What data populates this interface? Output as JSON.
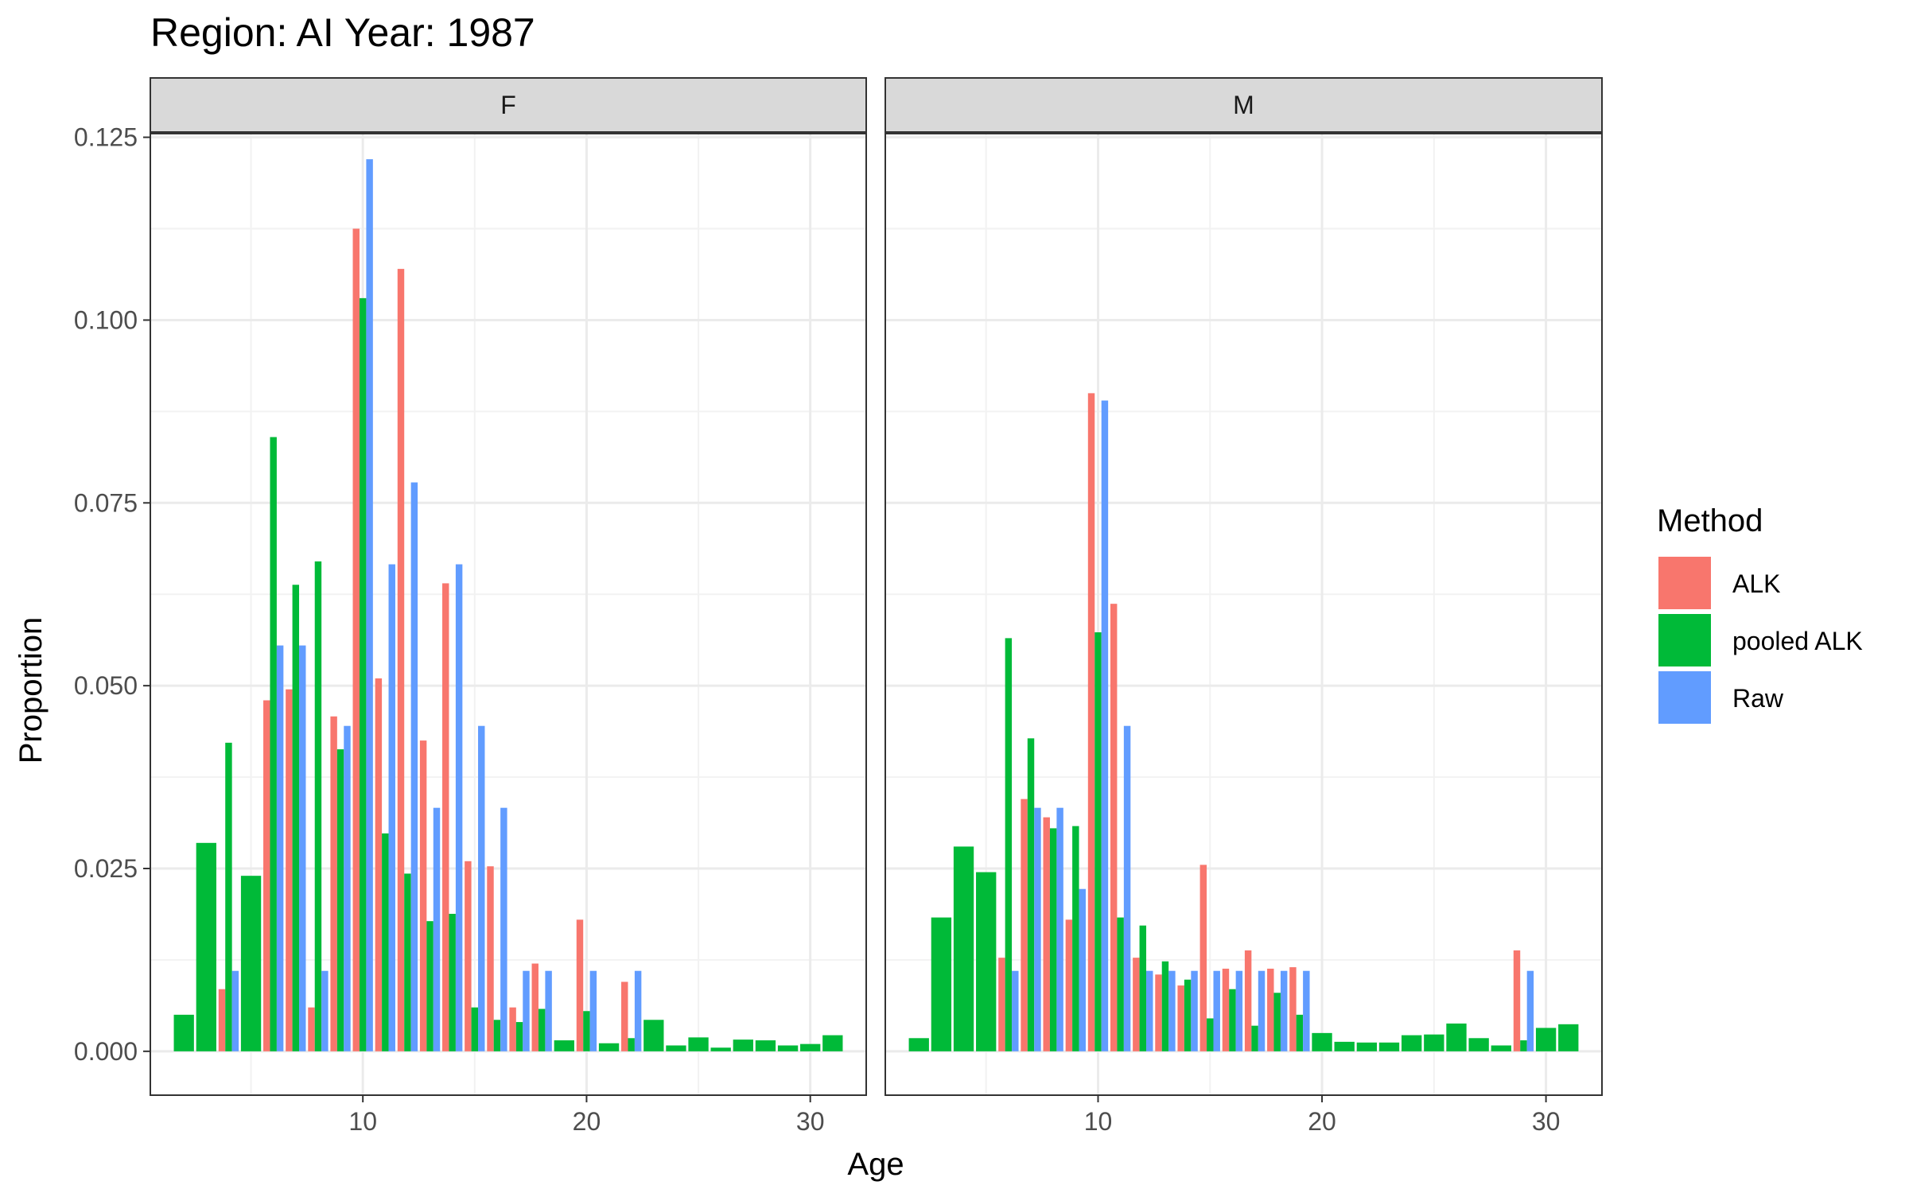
{
  "chart_data": {
    "type": "bar",
    "title": "Region: AI Year: 1987",
    "xlabel": "Age",
    "ylabel": "Proportion",
    "xlim": [
      0.5,
      32.5
    ],
    "ylim": [
      -0.006,
      0.1255
    ],
    "x_ticks": [
      10,
      20,
      30
    ],
    "y_ticks": [
      0.0,
      0.025,
      0.05,
      0.075,
      0.1,
      0.125
    ],
    "y_tick_labels": [
      "0.000",
      "0.025",
      "0.050",
      "0.075",
      "0.100",
      "0.125"
    ],
    "grid": true,
    "legend": {
      "title": "Method",
      "position": "right",
      "entries": [
        "ALK",
        "pooled ALK",
        "Raw"
      ]
    },
    "colors": {
      "ALK": "#F8766D",
      "pooled ALK": "#00BA38",
      "Raw": "#619CFF"
    },
    "facets": [
      {
        "label": "F",
        "series": [
          {
            "name": "ALK",
            "points": [
              [
                4,
                0.0085
              ],
              [
                6,
                0.048
              ],
              [
                7,
                0.0495
              ],
              [
                8,
                0.006
              ],
              [
                9,
                0.0458
              ],
              [
                10,
                0.1125
              ],
              [
                11,
                0.051
              ],
              [
                12,
                0.107
              ],
              [
                13,
                0.0425
              ],
              [
                14,
                0.064
              ],
              [
                15,
                0.026
              ],
              [
                16,
                0.0253
              ],
              [
                17,
                0.006
              ],
              [
                18,
                0.012
              ],
              [
                20,
                0.018
              ],
              [
                22,
                0.0095
              ]
            ]
          },
          {
            "name": "pooled ALK",
            "points": [
              [
                2,
                0.005
              ],
              [
                3,
                0.0285
              ],
              [
                4,
                0.0422
              ],
              [
                5,
                0.024
              ],
              [
                6,
                0.084
              ],
              [
                7,
                0.0638
              ],
              [
                8,
                0.067
              ],
              [
                9,
                0.0413
              ],
              [
                10,
                0.103
              ],
              [
                11,
                0.0298
              ],
              [
                12,
                0.0243
              ],
              [
                13,
                0.0178
              ],
              [
                14,
                0.0188
              ],
              [
                15,
                0.006
              ],
              [
                16,
                0.0043
              ],
              [
                17,
                0.004
              ],
              [
                18,
                0.0058
              ],
              [
                19,
                0.0015
              ],
              [
                20,
                0.0055
              ],
              [
                21,
                0.0011
              ],
              [
                22,
                0.0018
              ],
              [
                23,
                0.0043
              ],
              [
                24,
                0.0008
              ],
              [
                25,
                0.0019
              ],
              [
                26,
                0.0005
              ],
              [
                27,
                0.0016
              ],
              [
                28,
                0.0015
              ],
              [
                29,
                0.0008
              ],
              [
                30,
                0.001
              ],
              [
                31,
                0.0022
              ]
            ]
          },
          {
            "name": "Raw",
            "points": [
              [
                4,
                0.011
              ],
              [
                6,
                0.0555
              ],
              [
                7,
                0.0555
              ],
              [
                8,
                0.011
              ],
              [
                9,
                0.0445
              ],
              [
                10,
                0.122
              ],
              [
                11,
                0.0666
              ],
              [
                12,
                0.0778
              ],
              [
                13,
                0.0333
              ],
              [
                14,
                0.0666
              ],
              [
                15,
                0.0445
              ],
              [
                16,
                0.0333
              ],
              [
                17,
                0.011
              ],
              [
                18,
                0.011
              ],
              [
                20,
                0.011
              ],
              [
                22,
                0.011
              ]
            ]
          }
        ]
      },
      {
        "label": "M",
        "series": [
          {
            "name": "ALK",
            "points": [
              [
                6,
                0.0128
              ],
              [
                7,
                0.0345
              ],
              [
                8,
                0.032
              ],
              [
                9,
                0.018
              ],
              [
                10,
                0.09
              ],
              [
                11,
                0.0612
              ],
              [
                12,
                0.0128
              ],
              [
                13,
                0.0105
              ],
              [
                14,
                0.009
              ],
              [
                15,
                0.0255
              ],
              [
                16,
                0.0113
              ],
              [
                17,
                0.0138
              ],
              [
                18,
                0.0113
              ],
              [
                19,
                0.0115
              ],
              [
                29,
                0.0138
              ]
            ]
          },
          {
            "name": "pooled ALK",
            "points": [
              [
                2,
                0.0018
              ],
              [
                3,
                0.0183
              ],
              [
                4,
                0.028
              ],
              [
                5,
                0.0245
              ],
              [
                6,
                0.0565
              ],
              [
                7,
                0.0428
              ],
              [
                8,
                0.0305
              ],
              [
                9,
                0.0308
              ],
              [
                10,
                0.0573
              ],
              [
                11,
                0.0183
              ],
              [
                12,
                0.0172
              ],
              [
                13,
                0.0123
              ],
              [
                14,
                0.0098
              ],
              [
                15,
                0.0045
              ],
              [
                16,
                0.0085
              ],
              [
                17,
                0.0035
              ],
              [
                18,
                0.008
              ],
              [
                19,
                0.005
              ],
              [
                20,
                0.0025
              ],
              [
                21,
                0.0013
              ],
              [
                22,
                0.0012
              ],
              [
                23,
                0.0012
              ],
              [
                24,
                0.0022
              ],
              [
                25,
                0.0023
              ],
              [
                26,
                0.0038
              ],
              [
                27,
                0.0018
              ],
              [
                28,
                0.0008
              ],
              [
                29,
                0.0015
              ],
              [
                30,
                0.0032
              ],
              [
                31,
                0.0037
              ]
            ]
          },
          {
            "name": "Raw",
            "points": [
              [
                6,
                0.011
              ],
              [
                7,
                0.0333
              ],
              [
                8,
                0.0333
              ],
              [
                9,
                0.0222
              ],
              [
                10,
                0.089
              ],
              [
                11,
                0.0445
              ],
              [
                12,
                0.011
              ],
              [
                13,
                0.011
              ],
              [
                14,
                0.011
              ],
              [
                15,
                0.011
              ],
              [
                16,
                0.011
              ],
              [
                17,
                0.011
              ],
              [
                18,
                0.011
              ],
              [
                19,
                0.011
              ],
              [
                29,
                0.011
              ]
            ]
          }
        ]
      }
    ]
  }
}
